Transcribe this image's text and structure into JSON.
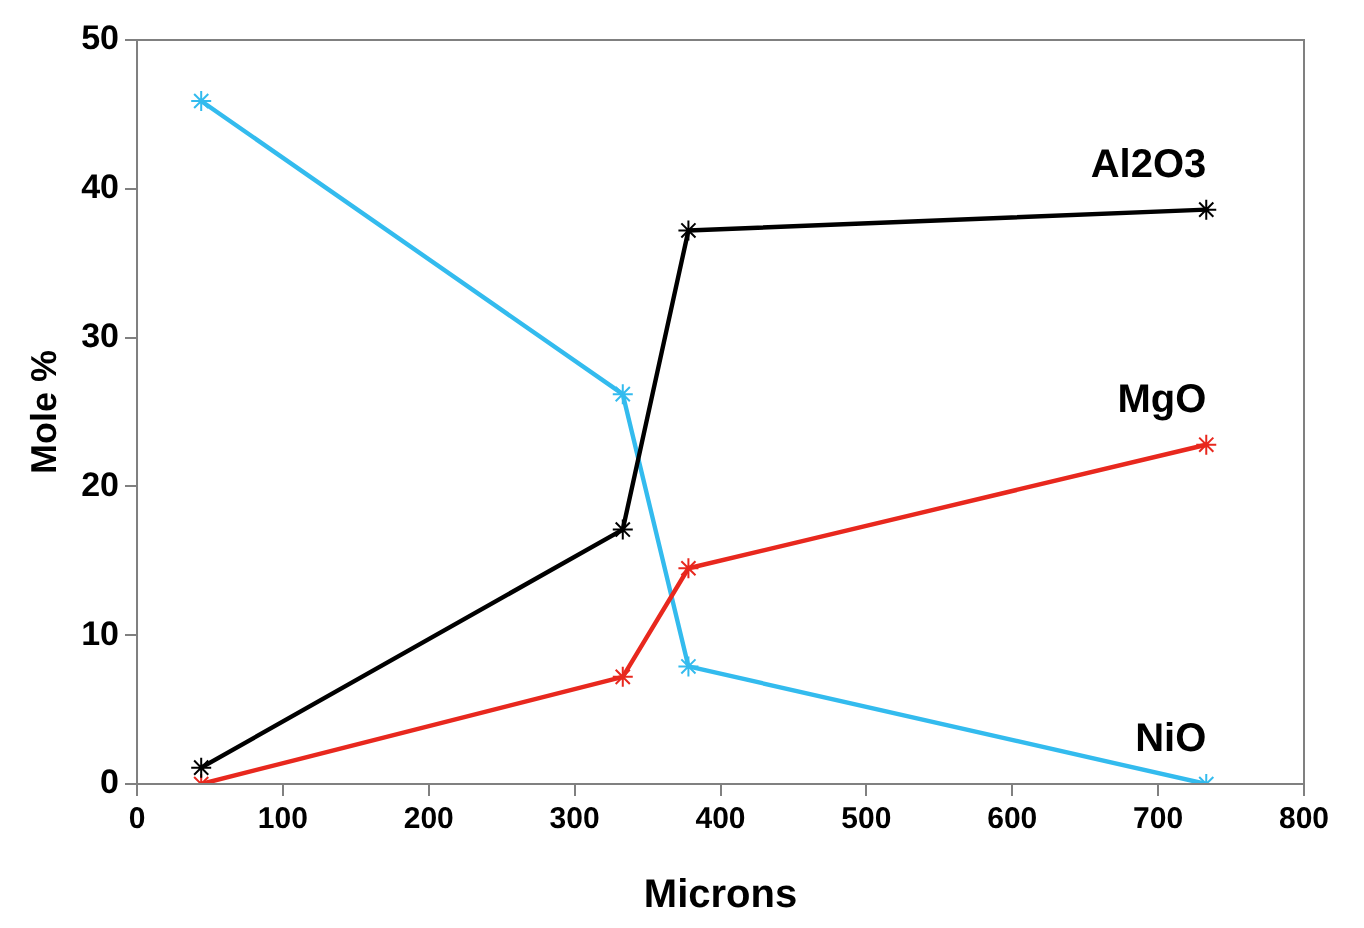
{
  "chart_data": {
    "type": "line",
    "xlabel": "Microns",
    "ylabel": "Mole %",
    "xlim": [
      0,
      800
    ],
    "xticks": [
      0,
      100,
      200,
      300,
      400,
      500,
      600,
      700,
      800
    ],
    "ylim": [
      0,
      50
    ],
    "yticks": [
      0,
      10,
      20,
      30,
      40,
      50
    ],
    "grid": false,
    "legend": false,
    "marker": "cross",
    "line_style": "solid",
    "x": [
      44,
      333,
      378,
      733
    ],
    "series": [
      {
        "name": "Al2O3",
        "color": "#000000",
        "values": [
          1.1,
          17.1,
          37.2,
          38.6
        ]
      },
      {
        "name": "MgO",
        "color": "#e8281e",
        "values": [
          0,
          7.2,
          14.5,
          22.8
        ]
      },
      {
        "name": "NiO",
        "color": "#33bbee",
        "values": [
          45.9,
          26.2,
          7.9,
          0
        ]
      }
    ]
  }
}
